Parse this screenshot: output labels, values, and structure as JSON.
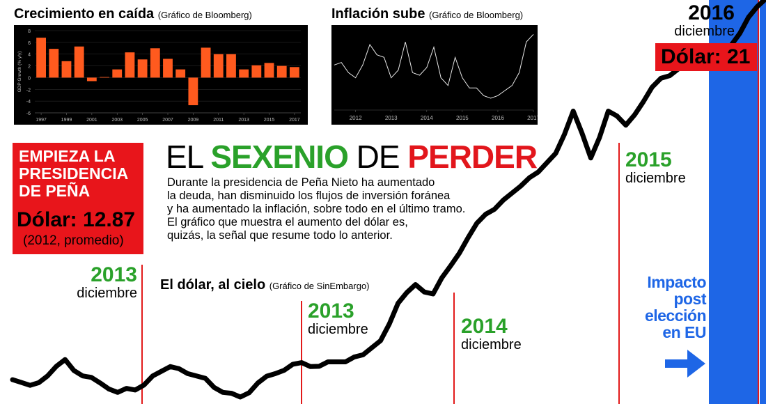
{
  "colors": {
    "accent_red": "#e2161c",
    "accent_green": "#2aa12a",
    "accent_blue": "#1e66e6",
    "bar_orange": "#ff5a1e",
    "line_white": "#e6e6e6"
  },
  "growth_chart": {
    "title": "Crecimiento en caída",
    "source": "(Gráfico de Bloomberg)",
    "ylabel": "GDP Growth (% y/y)",
    "y_ticks": [
      "8",
      "6",
      "4",
      "2",
      "0",
      "-2",
      "-4",
      "-6"
    ],
    "x_ticks": [
      "1997",
      "1999",
      "2001",
      "2003",
      "2005",
      "2007",
      "2009",
      "2011",
      "2013",
      "2015",
      "2017"
    ]
  },
  "inflation_chart": {
    "title": "Inflación sube",
    "source": "(Gráfico de Bloomberg)",
    "x_ticks": [
      "2012",
      "2013",
      "2014",
      "2015",
      "2016",
      "2017"
    ]
  },
  "main_chart": {
    "title": "El dólar, al cielo",
    "source": "(Gráfico de SinEmbargo)"
  },
  "headline": {
    "part1": "EL ",
    "part2": "SEXENIO",
    "part3": " DE ",
    "part4": "PERDER"
  },
  "body_lines": [
    "Durante la presidencia de Peña Nieto ha aumentado",
    "la deuda, han disminuido los flujos de inversión foránea",
    "y ha aumentado la inflación, sobre todo en el último tramo.",
    "El gráfico que muestra el aumento del dólar es,",
    "quizás, la señal que resume todo lo anterior."
  ],
  "start_box": {
    "heading_lines": [
      "EMPIEZA LA",
      "PRESIDENCIA",
      "DE PEÑA"
    ],
    "dollar": "Dólar: 12.87",
    "note": "(2012, promedio)"
  },
  "end_box": {
    "year": "2016",
    "month": "diciembre",
    "dollar": "Dólar: 21"
  },
  "markers": [
    {
      "year": "2013",
      "month": "diciembre"
    },
    {
      "year": "2013",
      "month": "diciembre"
    },
    {
      "year": "2014",
      "month": "diciembre"
    },
    {
      "year": "2015",
      "month": "diciembre"
    }
  ],
  "impact_lines": [
    "Impacto",
    "post",
    "elección",
    "en EU"
  ],
  "chart_data": [
    {
      "type": "bar",
      "title": "Crecimiento en caída",
      "ylabel": "GDP Growth (% y/y)",
      "ylim": [
        -6,
        8
      ],
      "categories": [
        "1997",
        "1998",
        "1999",
        "2000",
        "2001",
        "2002",
        "2003",
        "2004",
        "2005",
        "2006",
        "2007",
        "2008",
        "2009",
        "2010",
        "2011",
        "2012",
        "2013",
        "2014",
        "2015",
        "2016",
        "2017"
      ],
      "values": [
        6.8,
        4.9,
        2.8,
        5.3,
        -0.6,
        0.1,
        1.4,
        4.3,
        3.1,
        5.0,
        3.2,
        1.4,
        -4.7,
        5.1,
        4.0,
        4.0,
        1.4,
        2.1,
        2.5,
        2.0,
        1.8
      ]
    },
    {
      "type": "line",
      "title": "Inflación sube",
      "x_labels": [
        "2012",
        "2013",
        "2014",
        "2015",
        "2016",
        "2017"
      ],
      "x": [
        2011.4,
        2011.6,
        2011.8,
        2012.0,
        2012.2,
        2012.4,
        2012.6,
        2012.8,
        2013.0,
        2013.2,
        2013.4,
        2013.6,
        2013.8,
        2014.0,
        2014.2,
        2014.4,
        2014.6,
        2014.8,
        2015.0,
        2015.2,
        2015.4,
        2015.6,
        2015.8,
        2016.0,
        2016.2,
        2016.4,
        2016.6,
        2016.8,
        2017.0
      ],
      "values": [
        3.8,
        3.9,
        3.5,
        3.3,
        3.8,
        4.6,
        4.2,
        4.1,
        3.3,
        3.6,
        4.7,
        3.5,
        3.4,
        3.7,
        4.5,
        3.3,
        3.0,
        4.1,
        3.3,
        2.9,
        2.9,
        2.6,
        2.5,
        2.6,
        2.8,
        3.0,
        3.5,
        4.7,
        5.0
      ]
    },
    {
      "type": "line",
      "title": "El dólar, al cielo",
      "x_start": 2012.0,
      "x_end": 2017.0,
      "values": [
        12.87,
        12.75,
        12.95,
        13.3,
        12.95,
        12.8,
        12.6,
        12.65,
        12.95,
        13.15,
        13.0,
        12.9,
        12.6,
        12.5,
        12.8,
        13.0,
        13.2,
        13.15,
        13.25,
        13.25,
        13.4,
        13.7,
        14.5,
        14.9,
        14.7,
        15.3,
        15.9,
        16.4,
        16.7,
        17.0,
        17.3,
        17.7,
        18.6,
        17.6,
        18.6,
        18.3,
        18.8,
        19.3,
        19.5,
        19.6,
        19.8,
        20.0,
        20.6,
        21.0
      ]
    }
  ]
}
